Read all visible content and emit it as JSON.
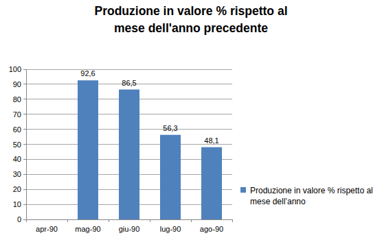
{
  "chart_data": {
    "type": "bar",
    "title": "Produzione in valore % rispetto al mese dell'anno precedente",
    "categories": [
      "apr-90",
      "mag-90",
      "giu-90",
      "lug-90",
      "ago-90"
    ],
    "series": [
      {
        "name": "Produzione in valore % rispetto al mese dell’anno",
        "color": "#4f81bd",
        "values": [
          null,
          92.6,
          86.5,
          56.3,
          48.1
        ],
        "value_labels": [
          null,
          "92,6",
          "86,5",
          "56,3",
          "48,1"
        ]
      }
    ],
    "ylim": [
      0,
      100
    ],
    "yticks": [
      0,
      10,
      20,
      30,
      40,
      50,
      60,
      70,
      80,
      90,
      100
    ],
    "grid": true,
    "legend": "right",
    "data_labels": true
  }
}
